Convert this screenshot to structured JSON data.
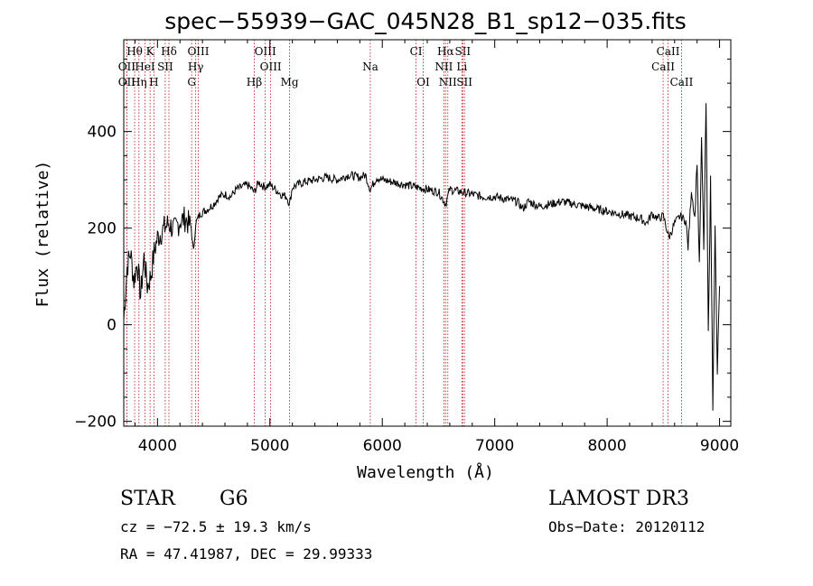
{
  "chart_data": {
    "type": "line",
    "title": "spec−55939−GAC_045N28_B1_sp12−035.fits",
    "xlabel": "Wavelength (Å)",
    "ylabel": "Flux (relative)",
    "xlim": [
      3700,
      9100
    ],
    "ylim": [
      -210,
      590
    ],
    "xticks": [
      4000,
      5000,
      6000,
      7000,
      8000,
      9000
    ],
    "yticks": [
      -200,
      0,
      200,
      400
    ],
    "ytick_labels": [
      "−200",
      "0",
      "200",
      "400"
    ],
    "grid": false,
    "series": [
      {
        "x": [
          3700,
          3730,
          3760,
          3790,
          3820,
          3850,
          3880,
          3910,
          3940,
          3970,
          4000,
          4030,
          4060,
          4100,
          4150,
          4200,
          4250,
          4300,
          4320,
          4340,
          4380,
          4450,
          4500,
          4550,
          4600,
          4650,
          4700,
          4750,
          4800,
          4861,
          4900,
          4950,
          5000,
          5050,
          5100,
          5150,
          5175,
          5200,
          5250,
          5300,
          5400,
          5500,
          5600,
          5700,
          5800,
          5850,
          5893,
          5950,
          6000,
          6100,
          6200,
          6300,
          6400,
          6500,
          6563,
          6600,
          6700,
          6800,
          6900,
          7000,
          7100,
          7200,
          7250,
          7300,
          7400,
          7500,
          7600,
          7700,
          7800,
          7900,
          8000,
          8100,
          8200,
          8300,
          8350,
          8400,
          8450,
          8500,
          8550,
          8600,
          8650,
          8700,
          8720,
          8750,
          8780,
          8800,
          8820,
          8840,
          8860,
          8880,
          8900,
          8920,
          8940,
          8960,
          8980,
          9000
        ],
        "values": [
          10,
          120,
          150,
          90,
          130,
          60,
          140,
          80,
          100,
          150,
          180,
          190,
          200,
          210,
          195,
          215,
          220,
          200,
          150,
          210,
          230,
          240,
          250,
          265,
          270,
          265,
          280,
          285,
          290,
          275,
          295,
          285,
          290,
          280,
          270,
          265,
          250,
          285,
          290,
          295,
          300,
          305,
          300,
          310,
          305,
          310,
          280,
          305,
          300,
          295,
          290,
          285,
          280,
          275,
          250,
          280,
          275,
          270,
          265,
          265,
          260,
          255,
          240,
          255,
          245,
          250,
          255,
          250,
          245,
          240,
          235,
          230,
          225,
          220,
          210,
          230,
          220,
          225,
          180,
          210,
          225,
          215,
          160,
          280,
          220,
          340,
          120,
          380,
          160,
          460,
          -20,
          300,
          -170,
          200,
          -100,
          80
        ]
      }
    ],
    "spectral_lines": [
      {
        "label": "Hθ",
        "wavelength": 3797,
        "row": 0
      },
      {
        "label": "K",
        "wavelength": 3934,
        "row": 0
      },
      {
        "label": "Hδ",
        "wavelength": 4102,
        "row": 0
      },
      {
        "label": "OIII",
        "wavelength": 4363,
        "row": 0
      },
      {
        "label": "OIII",
        "wavelength": 4959,
        "row": 0
      },
      {
        "label": "CI",
        "wavelength": 6300,
        "row": 0
      },
      {
        "label": "Hα",
        "wavelength": 6563,
        "row": 0
      },
      {
        "label": "SII",
        "wavelength": 6716,
        "row": 0
      },
      {
        "label": "CaII",
        "wavelength": 8542,
        "row": 0
      },
      {
        "label": "OII",
        "wavelength": 3727,
        "row": 1
      },
      {
        "label": "HeI",
        "wavelength": 3889,
        "row": 1
      },
      {
        "label": "SII",
        "wavelength": 4069,
        "row": 1
      },
      {
        "label": "Hγ",
        "wavelength": 4340,
        "row": 1
      },
      {
        "label": "OIII",
        "wavelength": 5007,
        "row": 1
      },
      {
        "label": "Na",
        "wavelength": 5893,
        "row": 1
      },
      {
        "label": "NII",
        "wavelength": 6548,
        "row": 1
      },
      {
        "label": "Li",
        "wavelength": 6708,
        "row": 1
      },
      {
        "label": "CaII",
        "wavelength": 8498,
        "row": 1
      },
      {
        "label": "OII",
        "wavelength": 3727,
        "row": 2
      },
      {
        "label": "Hη",
        "wavelength": 3835,
        "row": 2
      },
      {
        "label": "H",
        "wavelength": 3968,
        "row": 2
      },
      {
        "label": "G",
        "wavelength": 4304,
        "row": 2
      },
      {
        "label": "Hβ",
        "wavelength": 4861,
        "row": 2
      },
      {
        "label": "Mg",
        "wavelength": 5175,
        "row": 2
      },
      {
        "label": "OI",
        "wavelength": 6364,
        "row": 2
      },
      {
        "label": "NII",
        "wavelength": 6583,
        "row": 2
      },
      {
        "label": "SII",
        "wavelength": 6731,
        "row": 2
      },
      {
        "label": "CaII",
        "wavelength": 8662,
        "row": 2
      }
    ]
  },
  "info": {
    "class": "STAR",
    "subclass": "G6",
    "survey": "LAMOST DR3",
    "cz": "cz = −72.5 ± 19.3 km/s",
    "obs_date": "Obs−Date: 20120112",
    "radec": "RA =  47.41987, DEC =  29.99333"
  }
}
